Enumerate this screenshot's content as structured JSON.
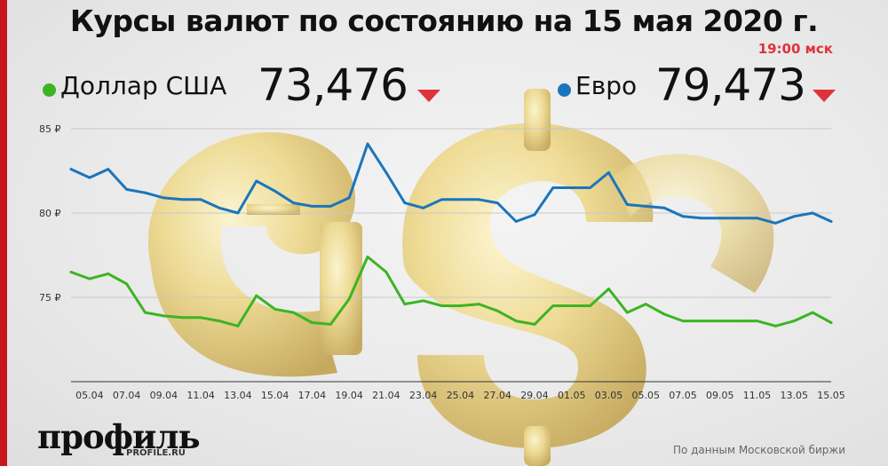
{
  "header": {
    "title": "Курсы валют по состоянию на 15 мая 2020 г.",
    "time": "19:00 мск"
  },
  "legend": {
    "usd": {
      "label": "Доллар США",
      "value": "73,476",
      "trend": "down",
      "color": "#3cb423"
    },
    "eur": {
      "label": "Евро",
      "value": "79,473",
      "trend": "down",
      "color": "#1b75bc"
    }
  },
  "colors": {
    "accent_red": "#c4161c",
    "down_arrow": "#e0323a",
    "gridline": "#c8c8c8"
  },
  "chart_data": {
    "type": "line",
    "x": [
      "04.04",
      "05.04",
      "06.04",
      "07.04",
      "08.04",
      "09.04",
      "10.04",
      "11.04",
      "12.04",
      "13.04",
      "14.04",
      "15.04",
      "16.04",
      "17.04",
      "18.04",
      "19.04",
      "20.04",
      "21.04",
      "22.04",
      "23.04",
      "24.04",
      "25.04",
      "26.04",
      "27.04",
      "28.04",
      "29.04",
      "30.04",
      "01.05",
      "02.05",
      "03.05",
      "04.05",
      "05.05",
      "06.05",
      "07.05",
      "08.05",
      "09.05",
      "10.05",
      "11.05",
      "12.05",
      "13.05",
      "14.05",
      "15.05"
    ],
    "x_tick_labels": [
      "05.04",
      "07.04",
      "09.04",
      "11.04",
      "13.04",
      "15.04",
      "17.04",
      "19.04",
      "21.04",
      "23.04",
      "25.04",
      "27.04",
      "29.04",
      "01.05",
      "03.05",
      "05.05",
      "07.05",
      "09.05",
      "11.05",
      "13.05",
      "15.05"
    ],
    "series": [
      {
        "name": "Евро",
        "color": "#1b75bc",
        "values": [
          82.6,
          82.1,
          82.6,
          81.4,
          81.2,
          80.9,
          80.8,
          80.8,
          80.3,
          80.0,
          81.9,
          81.3,
          80.6,
          80.4,
          80.4,
          80.9,
          84.1,
          82.4,
          80.6,
          80.3,
          80.8,
          80.8,
          80.8,
          80.6,
          79.5,
          79.9,
          81.5,
          81.5,
          81.5,
          82.4,
          80.5,
          80.4,
          80.3,
          79.8,
          79.7,
          79.7,
          79.7,
          79.7,
          79.4,
          79.8,
          80.0,
          79.5
        ]
      },
      {
        "name": "Доллар США",
        "color": "#3cb423",
        "values": [
          76.5,
          76.1,
          76.4,
          75.8,
          74.1,
          73.9,
          73.8,
          73.8,
          73.6,
          73.3,
          75.1,
          74.3,
          74.1,
          73.5,
          73.4,
          74.9,
          77.4,
          76.5,
          74.6,
          74.8,
          74.5,
          74.5,
          74.6,
          74.2,
          73.6,
          73.4,
          74.5,
          74.5,
          74.5,
          75.5,
          74.1,
          74.6,
          74.0,
          73.6,
          73.6,
          73.6,
          73.6,
          73.6,
          73.3,
          73.6,
          74.1,
          73.5
        ]
      }
    ],
    "y_ticks": [
      75,
      80,
      85
    ],
    "y_tick_labels": [
      "75 ₽",
      "80 ₽",
      "85 ₽"
    ],
    "ylim": [
      70,
      85
    ],
    "grid": true
  },
  "footer": {
    "brand": "профиль",
    "brand_url": "PROFILE.RU",
    "source": "По данным Московской биржи"
  }
}
